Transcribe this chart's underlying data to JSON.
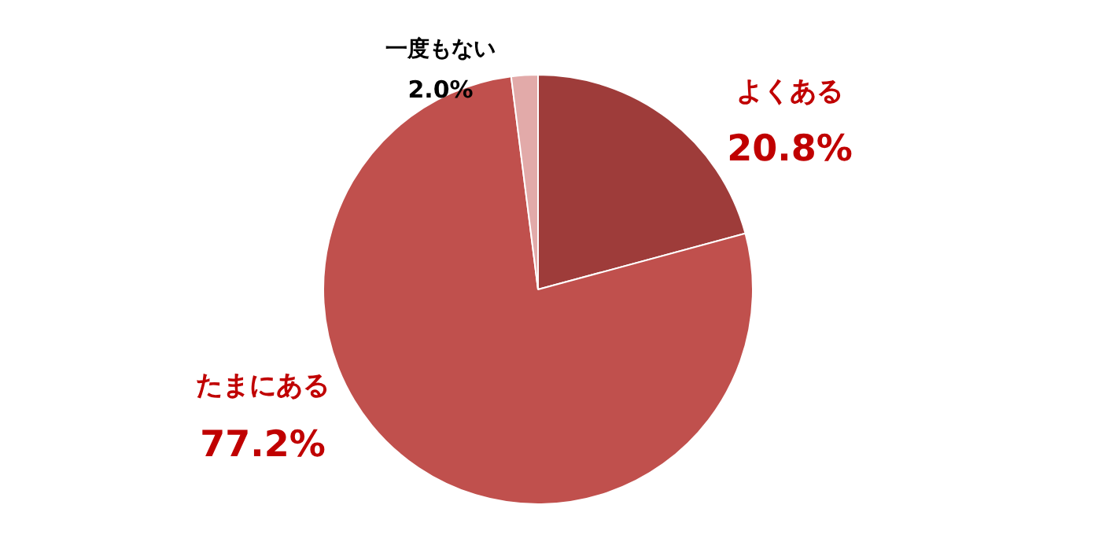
{
  "chart_data": {
    "type": "pie",
    "categories": [
      "よくある",
      "たまにある",
      "一度もない"
    ],
    "values": [
      20.8,
      77.2,
      2.0
    ],
    "colors": [
      "#9e3c3a",
      "#c0504d",
      "#e2aaa9"
    ],
    "value_labels": [
      "20.8%",
      "77.2%",
      "2.0%"
    ],
    "legend": false
  }
}
